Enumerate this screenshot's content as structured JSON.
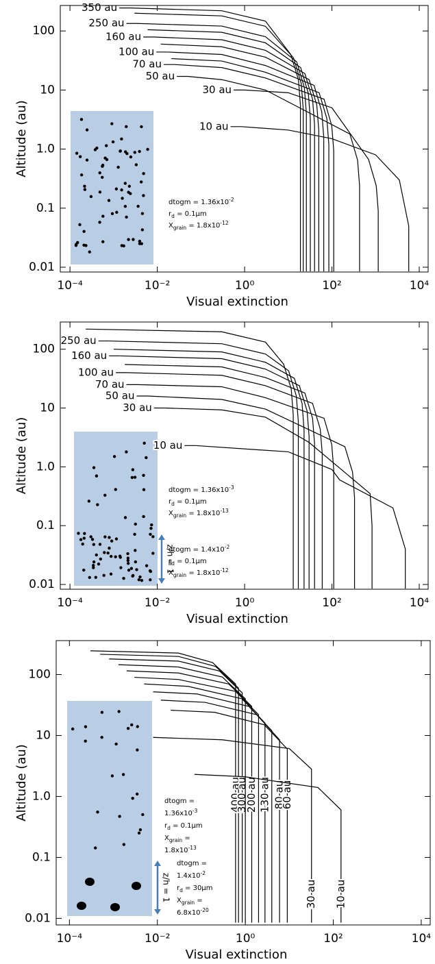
{
  "chart_data": [
    {
      "type": "line",
      "x_scale": "log",
      "y_scale": "log",
      "color": "#000000",
      "xlabel": "Visual extinction",
      "ylabel": "Altitude (au)",
      "xlim": [
        6e-05,
        16000
      ],
      "ylim": [
        0.0083,
        270
      ],
      "xticks": [
        {
          "value": 0.0001,
          "label": "10⁻⁴"
        },
        {
          "value": 0.01,
          "label": "10⁻²"
        },
        {
          "value": 1,
          "label": "10⁰"
        },
        {
          "value": 100,
          "label": "10²"
        },
        {
          "value": 10000,
          "label": "10⁴"
        }
      ],
      "yticks": [
        100,
        10,
        {
          "value": 1,
          "label": "1.0"
        },
        0.1,
        0.01
      ],
      "series": [
        {
          "name": "350 au",
          "x": [
            0.0024,
            0.3,
            3,
            11.4,
            17.1,
            19,
            19
          ],
          "values": [
            245,
            220,
            147,
            40,
            15,
            5.5,
            0.0085
          ]
        },
        {
          "x": [
            0.003,
            0.3,
            3,
            13.2,
            19.8,
            22,
            22
          ],
          "values": [
            200,
            180,
            120,
            35,
            13,
            4.8,
            0.0085
          ]
        },
        {
          "name": "250 au",
          "x": [
            0.0035,
            0.3,
            3,
            15.6,
            23.4,
            26,
            26
          ],
          "values": [
            134,
            121,
            80,
            30,
            11,
            4.0,
            0.0085
          ]
        },
        {
          "x": [
            0.006,
            0.3,
            3,
            19.2,
            28.8,
            32,
            32
          ],
          "values": [
            105,
            95,
            63,
            24,
            8.8,
            3.3,
            0.0085
          ]
        },
        {
          "name": "160 au",
          "x": [
            0.0085,
            0.3,
            3,
            24,
            36,
            40,
            40
          ],
          "values": [
            79,
            71,
            47,
            19,
            7.0,
            2.6,
            0.0085
          ]
        },
        {
          "x": [
            0.012,
            0.3,
            3,
            30,
            45,
            50,
            50
          ],
          "values": [
            60,
            54,
            36,
            15,
            5.6,
            2.1,
            0.0085
          ]
        },
        {
          "name": "100 au",
          "x": [
            0.017,
            0.3,
            3,
            39,
            58.5,
            65,
            65
          ],
          "values": [
            44,
            40,
            26,
            12,
            4.3,
            1.6,
            0.0085
          ]
        },
        {
          "x": [
            0.021,
            0.3,
            3,
            51,
            76.5,
            85,
            85
          ],
          "values": [
            34,
            31,
            20,
            9.0,
            3.3,
            1.2,
            0.0085
          ]
        },
        {
          "name": "70 au",
          "x": [
            0.025,
            0.3,
            3,
            66,
            99,
            110,
            110
          ],
          "values": [
            27,
            24,
            16,
            7.0,
            2.5,
            0.95,
            0.0085
          ]
        },
        {
          "name": "50 au",
          "x": [
            0.05,
            0.3,
            3,
            258,
            387,
            430,
            430
          ],
          "values": [
            17,
            15,
            10,
            1.8,
            0.65,
            0.24,
            0.0085
          ]
        },
        {
          "name": "30 au",
          "x": [
            1,
            10,
            100,
            690,
            1035,
            1150,
            1150
          ],
          "values": [
            10,
            9,
            5,
            0.67,
            0.24,
            0.09,
            0.0085
          ]
        },
        {
          "name": "10 au",
          "x": [
            0.85,
            10,
            100,
            1000,
            3500,
            5750,
            5750
          ],
          "values": [
            2.4,
            2.1,
            1.5,
            0.8,
            0.3,
            0.05,
            0.0085
          ]
        }
      ],
      "annotations": [
        [
          [
            {
              "text": "dtogm = 1.36x10"
            },
            {
              "text": "-2",
              "style": "sup"
            }
          ],
          [
            {
              "text": "r"
            },
            {
              "text": "d",
              "style": "sub"
            },
            {
              "text": " = 0.1μm"
            }
          ],
          [
            {
              "text": "X"
            },
            {
              "text": "grain",
              "style": "sub"
            },
            {
              "text": " = 1.8x10"
            },
            {
              "text": "-12",
              "style": "sup"
            }
          ]
        ]
      ]
    },
    {
      "type": "line",
      "x_scale": "log",
      "y_scale": "log",
      "color": "#000000",
      "xlabel": "Visual extinction",
      "ylabel": "Altitude (au)",
      "xlim": [
        6e-05,
        16000
      ],
      "ylim": [
        0.0083,
        290
      ],
      "xticks": [
        {
          "value": 0.0001,
          "label": "10⁻⁴"
        },
        {
          "value": 0.01,
          "label": "10⁻²"
        },
        {
          "value": 1,
          "label": "10⁰"
        },
        {
          "value": 100,
          "label": "10²"
        },
        {
          "value": 10000,
          "label": "10⁴"
        }
      ],
      "yticks": [
        100,
        10,
        {
          "value": 1,
          "label": "1.0"
        },
        0.1,
        0.01
      ],
      "series": [
        {
          "x": [
            0.00023,
            0.3,
            3,
            7.8,
            11.7,
            13,
            13
          ],
          "values": [
            220,
            198,
            132,
            56,
            21,
            7.7,
            0.0085
          ]
        },
        {
          "name": "250 au",
          "x": [
            0.0008,
            0.3,
            3,
            10.2,
            15.3,
            17,
            17
          ],
          "values": [
            138,
            124,
            83,
            43,
            16,
            5.9,
            0.0085
          ]
        },
        {
          "x": [
            0.001,
            0.3,
            3,
            13.8,
            20.7,
            23,
            23
          ],
          "values": [
            100,
            90,
            60,
            32,
            12,
            4.3,
            0.0085
          ]
        },
        {
          "name": "160 au",
          "x": [
            0.0014,
            0.3,
            3,
            18,
            27,
            30,
            30
          ],
          "values": [
            77,
            69,
            46,
            24,
            8.9,
            3.3,
            0.0085
          ]
        },
        {
          "x": [
            0.0018,
            0.3,
            3,
            24,
            36,
            40,
            40
          ],
          "values": [
            55,
            50,
            33,
            18,
            6.7,
            2.5,
            0.0085
          ]
        },
        {
          "name": "100 au",
          "x": [
            0.002,
            0.3,
            3,
            36,
            54,
            60,
            60
          ],
          "values": [
            40,
            36,
            24,
            12,
            4.4,
            1.7,
            0.0085
          ]
        },
        {
          "name": "70 au",
          "x": [
            0.0035,
            0.3,
            3,
            66,
            99,
            110,
            110
          ],
          "values": [
            25,
            23,
            15,
            6.7,
            2.4,
            0.91,
            0.0085
          ]
        },
        {
          "name": "50 au",
          "x": [
            0.006,
            0.3,
            3,
            198,
            297,
            330,
            330
          ],
          "values": [
            16,
            14,
            9.6,
            2.2,
            0.81,
            0.3,
            0.0085
          ]
        },
        {
          "name": "30 au",
          "x": [
            0.015,
            0.3,
            3,
            30,
            750,
            830,
            830
          ],
          "values": [
            10,
            9.3,
            7,
            2.6,
            0.35,
            0.1,
            0.0085
          ]
        },
        {
          "name": "10 au",
          "x": [
            0.075,
            10,
            100,
            150,
            2500,
            4800,
            4800
          ],
          "values": [
            2.3,
            1.8,
            0.9,
            0.6,
            0.2,
            0.04,
            0.0085
          ]
        }
      ],
      "annotations": [
        [
          [
            {
              "text": "dtogm = 1.36x10"
            },
            {
              "text": "-3",
              "style": "sup"
            }
          ],
          [
            {
              "text": "r"
            },
            {
              "text": "d",
              "style": "sub"
            },
            {
              "text": " = 0.1μm"
            }
          ],
          [
            {
              "text": "X"
            },
            {
              "text": "grain",
              "style": "sub"
            },
            {
              "text": " = 1.8x10"
            },
            {
              "text": "-13",
              "style": "sup"
            }
          ]
        ],
        [
          [
            {
              "text": "dtogm = 1.4x10"
            },
            {
              "text": "-2",
              "style": "sup"
            }
          ],
          [
            {
              "text": "r"
            },
            {
              "text": "d",
              "style": "sub"
            },
            {
              "text": " = 0.1μm"
            }
          ],
          [
            {
              "text": "X"
            },
            {
              "text": "grain",
              "style": "sub"
            },
            {
              "text": " = 1.8x10"
            },
            {
              "text": "-12",
              "style": "sup"
            }
          ]
        ]
      ],
      "scale_note": "z/h = 1"
    },
    {
      "type": "line",
      "x_scale": "log",
      "y_scale": "log",
      "color": "#000000",
      "xlabel": "Visual extinction",
      "ylabel": "Altitude (au)",
      "xlim": [
        5e-05,
        16000
      ],
      "ylim": [
        0.0078,
        360
      ],
      "xticks": [
        {
          "value": 0.0001,
          "label": "10⁻⁴"
        },
        {
          "value": 0.01,
          "label": "10⁻²"
        },
        {
          "value": 1,
          "label": "10⁰"
        },
        {
          "value": 100,
          "label": "10²"
        },
        {
          "value": 10000,
          "label": "10⁴"
        }
      ],
      "yticks": [
        100,
        10,
        {
          "value": 1,
          "label": "1.0"
        },
        0.1,
        0.01
      ],
      "series": [
        {
          "name": "400 au",
          "x": [
            0.0003,
            0.03,
            0.18,
            0.6,
            0.6
          ],
          "values": [
            245,
            225,
            157,
            70,
            0.0085
          ]
        },
        {
          "x": [
            0.0005,
            0.03,
            0.21,
            0.7,
            0.7
          ],
          "values": [
            215,
            198,
            136,
            60,
            0.0085
          ]
        },
        {
          "name": "300 au",
          "x": [
            0.0008,
            0.03,
            0.26,
            0.85,
            0.85
          ],
          "values": [
            180,
            166,
            114,
            50,
            0.0085
          ]
        },
        {
          "x": [
            0.0013,
            0.03,
            0.3,
            1.0,
            1.0
          ],
          "values": [
            145,
            133,
            91,
            40,
            0.0085
          ]
        },
        {
          "name": "200 au",
          "x": [
            0.002,
            0.03,
            0.42,
            1.4,
            1.4
          ],
          "values": [
            115,
            106,
            70,
            30,
            0.0085
          ]
        },
        {
          "x": [
            0.003,
            0.03,
            0.6,
            2.0,
            2.0
          ],
          "values": [
            90,
            83,
            53,
            22,
            0.0085
          ]
        },
        {
          "name": "130 au",
          "x": [
            0.005,
            0.05,
            0.84,
            2.8,
            2.8
          ],
          "values": [
            70,
            64,
            40,
            16,
            0.0085
          ]
        },
        {
          "x": [
            0.008,
            0.08,
            1.2,
            4,
            4
          ],
          "values": [
            52,
            48,
            30,
            12,
            0.0085
          ]
        },
        {
          "name": "80 au",
          "x": [
            0.012,
            0.12,
            1.8,
            6,
            6
          ],
          "values": [
            38,
            35,
            22,
            8.5,
            0.0085
          ]
        },
        {
          "name": "60 au",
          "x": [
            0.02,
            0.2,
            2.7,
            9,
            9
          ],
          "values": [
            26,
            24,
            15,
            6,
            0.0085
          ]
        },
        {
          "name": "30 au",
          "x": [
            0.008,
            0.3,
            10,
            32,
            32
          ],
          "values": [
            9.3,
            8.5,
            6.1,
            2.8,
            0.0085
          ]
        },
        {
          "name": "10 au",
          "x": [
            0.07,
            1,
            45,
            150,
            150
          ],
          "values": [
            2.3,
            2.1,
            1.4,
            0.6,
            0.0085
          ]
        }
      ],
      "annotations": [
        [
          [
            {
              "text": "dtogm ="
            }
          ],
          [
            {
              "text": "1.36x10"
            },
            {
              "text": "-3",
              "style": "sup"
            }
          ],
          [
            {
              "text": "r"
            },
            {
              "text": "d",
              "style": "sub"
            },
            {
              "text": " = 0.1μm"
            }
          ],
          [
            {
              "text": "X"
            },
            {
              "text": "grain",
              "style": "sub"
            },
            {
              "text": " ="
            }
          ],
          [
            {
              "text": "1.8x10"
            },
            {
              "text": "-13",
              "style": "sup"
            }
          ]
        ],
        [
          [
            {
              "text": "dtogm ="
            }
          ],
          [
            {
              "text": "1.4x10"
            },
            {
              "text": "-2",
              "style": "sup"
            }
          ],
          [
            {
              "text": "r"
            },
            {
              "text": "d",
              "style": "sub"
            },
            {
              "text": " = 30μm"
            }
          ],
          [
            {
              "text": "X"
            },
            {
              "text": "grain",
              "style": "sub"
            },
            {
              "text": " ="
            }
          ],
          [
            {
              "text": "6.8x10"
            },
            {
              "text": "-20",
              "style": "sup"
            }
          ]
        ]
      ],
      "scale_note": "z/h = 1"
    }
  ]
}
